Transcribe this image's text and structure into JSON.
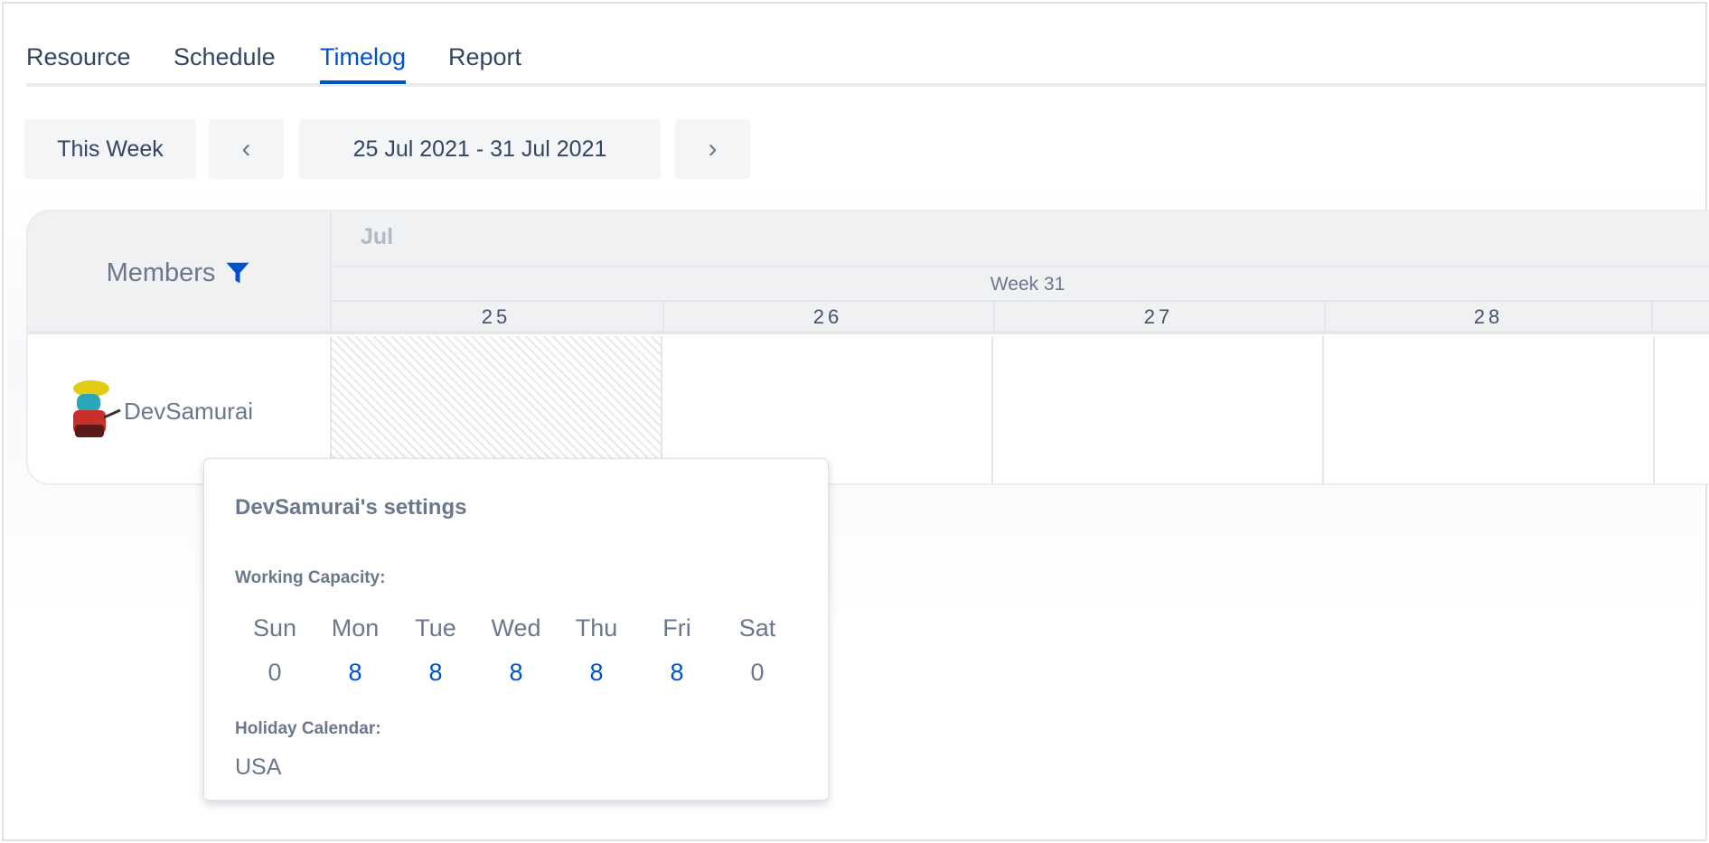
{
  "tabs": [
    {
      "label": "Resource",
      "active": false
    },
    {
      "label": "Schedule",
      "active": false
    },
    {
      "label": "Timelog",
      "active": true
    },
    {
      "label": "Report",
      "active": false
    }
  ],
  "toolbar": {
    "this_week": "This Week",
    "prev_icon": "chevron-left",
    "date_range": "25 Jul 2021 - 31 Jul 2021",
    "next_icon": "chevron-right"
  },
  "grid": {
    "members_label": "Members",
    "filter_icon": "filter",
    "month": "Jul",
    "week": "Week 31",
    "days": [
      "25",
      "26",
      "27",
      "28"
    ]
  },
  "members": [
    {
      "name": "DevSamurai",
      "avatar": "samurai-avatar"
    }
  ],
  "popup": {
    "title": "DevSamurai's settings",
    "capacity_label": "Working Capacity:",
    "capacity": [
      {
        "day": "Sun",
        "hours": "0"
      },
      {
        "day": "Mon",
        "hours": "8"
      },
      {
        "day": "Tue",
        "hours": "8"
      },
      {
        "day": "Wed",
        "hours": "8"
      },
      {
        "day": "Thu",
        "hours": "8"
      },
      {
        "day": "Fri",
        "hours": "8"
      },
      {
        "day": "Sat",
        "hours": "0"
      }
    ],
    "holiday_label": "Holiday Calendar:",
    "holiday_value": "USA"
  },
  "colors": {
    "accent": "#0052cc",
    "text": "#42526e",
    "muted": "#6b778c"
  }
}
